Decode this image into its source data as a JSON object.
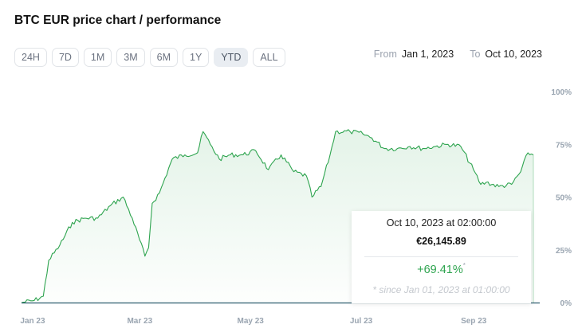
{
  "title": "BTC EUR price chart / performance",
  "ranges": [
    "24H",
    "7D",
    "1M",
    "3M",
    "6M",
    "1Y",
    "YTD",
    "ALL"
  ],
  "active_range": "YTD",
  "date_range": {
    "from_label": "From",
    "from": "Jan 1, 2023",
    "to_label": "To",
    "to": "Oct 10, 2023"
  },
  "tooltip": {
    "date": "Oct 10, 2023 at 02:00:00",
    "price": "€26,145.89",
    "change": "+69.41%",
    "change_mark": "*",
    "note": "* since Jan 01, 2023 at 01:00:00"
  },
  "colors": {
    "line": "#2ea44f",
    "baseline": "#2c5b6e",
    "axis_text": "#9aa5b1"
  },
  "chart_data": {
    "type": "area",
    "x_tick_labels": [
      "Jan 23",
      "Mar 23",
      "May 23",
      "Jul 23",
      "Sep 23"
    ],
    "y_tick_labels": [
      "0%",
      "25%",
      "50%",
      "75%",
      "100%"
    ],
    "ylim": [
      0,
      100
    ],
    "x": [
      "2023-01-01",
      "2023-01-08",
      "2023-01-13",
      "2023-01-16",
      "2023-01-22",
      "2023-01-29",
      "2023-02-05",
      "2023-02-12",
      "2023-02-19",
      "2023-02-26",
      "2023-03-03",
      "2023-03-10",
      "2023-03-12",
      "2023-03-14",
      "2023-03-18",
      "2023-03-25",
      "2023-04-01",
      "2023-04-08",
      "2023-04-11",
      "2023-04-15",
      "2023-04-20",
      "2023-04-26",
      "2023-05-03",
      "2023-05-10",
      "2023-05-17",
      "2023-05-24",
      "2023-05-31",
      "2023-06-07",
      "2023-06-10",
      "2023-06-15",
      "2023-06-20",
      "2023-06-23",
      "2023-07-01",
      "2023-07-08",
      "2023-07-13",
      "2023-07-20",
      "2023-07-27",
      "2023-08-03",
      "2023-08-10",
      "2023-08-17",
      "2023-08-24",
      "2023-08-31",
      "2023-09-07",
      "2023-09-11",
      "2023-09-14",
      "2023-09-21",
      "2023-09-28",
      "2023-10-03",
      "2023-10-07",
      "2023-10-10"
    ],
    "series": [
      {
        "values": [
          0,
          1,
          3,
          20,
          27,
          38,
          40,
          40,
          46,
          50,
          40,
          22,
          26,
          47,
          52,
          68,
          70,
          71,
          81,
          75,
          68,
          70,
          70,
          72,
          63,
          70,
          62,
          60,
          50,
          55,
          70,
          81,
          81,
          80,
          78,
          73,
          73,
          74,
          73,
          74,
          75,
          74,
          63,
          56,
          57,
          55,
          56,
          62,
          71,
          70
        ]
      }
    ],
    "grid": false,
    "legend": "none"
  }
}
